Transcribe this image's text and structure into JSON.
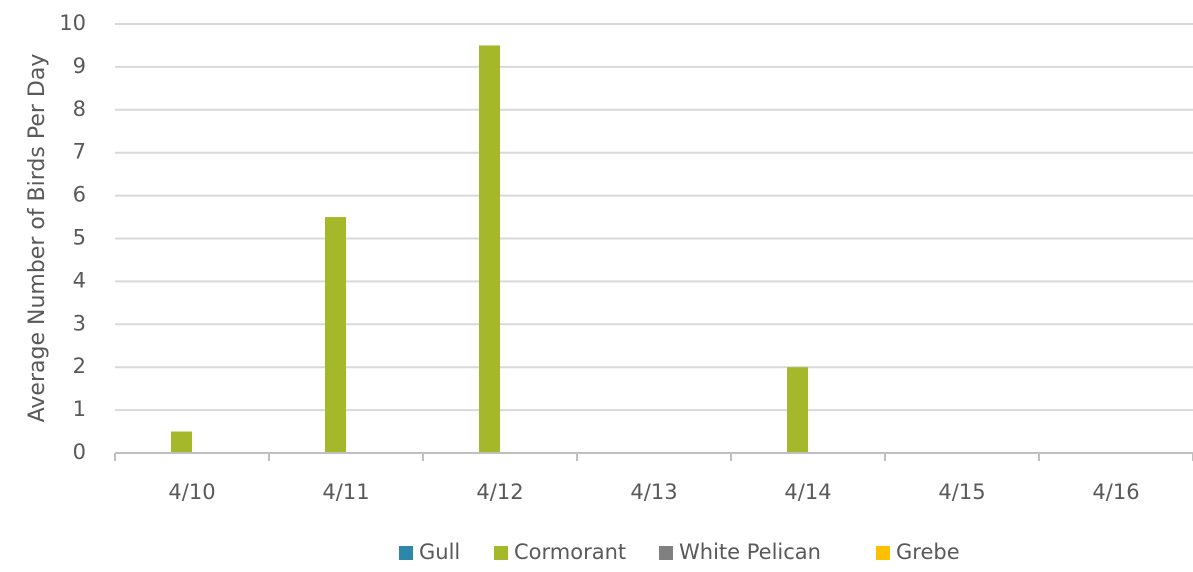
{
  "chart_data": {
    "type": "bar",
    "title": "",
    "xlabel": "",
    "ylabel": "Average Number of Birds Per Day",
    "categories": [
      "4/10",
      "4/11",
      "4/12",
      "4/13",
      "4/14",
      "4/15",
      "4/16"
    ],
    "ylim": [
      0,
      10
    ],
    "yticks": [
      0,
      1,
      2,
      3,
      4,
      5,
      6,
      7,
      8,
      9,
      10
    ],
    "grid": true,
    "legend_position": "bottom",
    "series": [
      {
        "name": "Gull",
        "color": "#2E86AB",
        "values": [
          0,
          0,
          0,
          0,
          0,
          0,
          0
        ]
      },
      {
        "name": "Cormorant",
        "color": "#A5B82A",
        "values": [
          0.5,
          5.5,
          9.5,
          0,
          2,
          0,
          0
        ]
      },
      {
        "name": "White Pelican",
        "color": "#808080",
        "values": [
          0,
          0,
          0,
          0,
          0,
          0,
          0
        ]
      },
      {
        "name": "Grebe",
        "color": "#FFC000",
        "values": [
          0,
          0,
          0,
          0,
          0,
          0,
          0
        ]
      }
    ]
  }
}
